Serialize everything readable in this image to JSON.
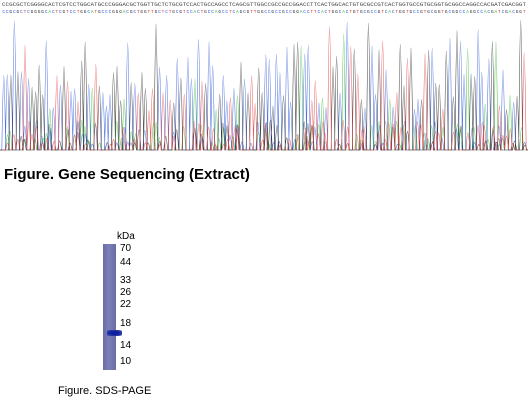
{
  "sequencing": {
    "caption": "Figure. Gene Sequencing (Extract)",
    "base_colors": {
      "A": "#2fb82f",
      "C": "#2a55d8",
      "G": "#222222",
      "T": "#e23838"
    },
    "bases": "CCGCGCTCGGGGCACTCGTCCTGGCATGCCCGGGACGCTGGTTGCTCTGCGTCCACTGCCAGCCTCAGCGTTGGCCGCCGCCGGACCTTCACTGGCACTGTGCGCCGTCACTGGTGCCGTGCGGTGCGGCCAGGCCACGATCGACGGT"
  },
  "sds_page": {
    "unit": "kDa",
    "markers": [
      "70",
      "44",
      "33",
      "26",
      "22",
      "18",
      "14",
      "10"
    ],
    "band_color": "#1a2aa0",
    "caption": "Figure. SDS-PAGE"
  }
}
